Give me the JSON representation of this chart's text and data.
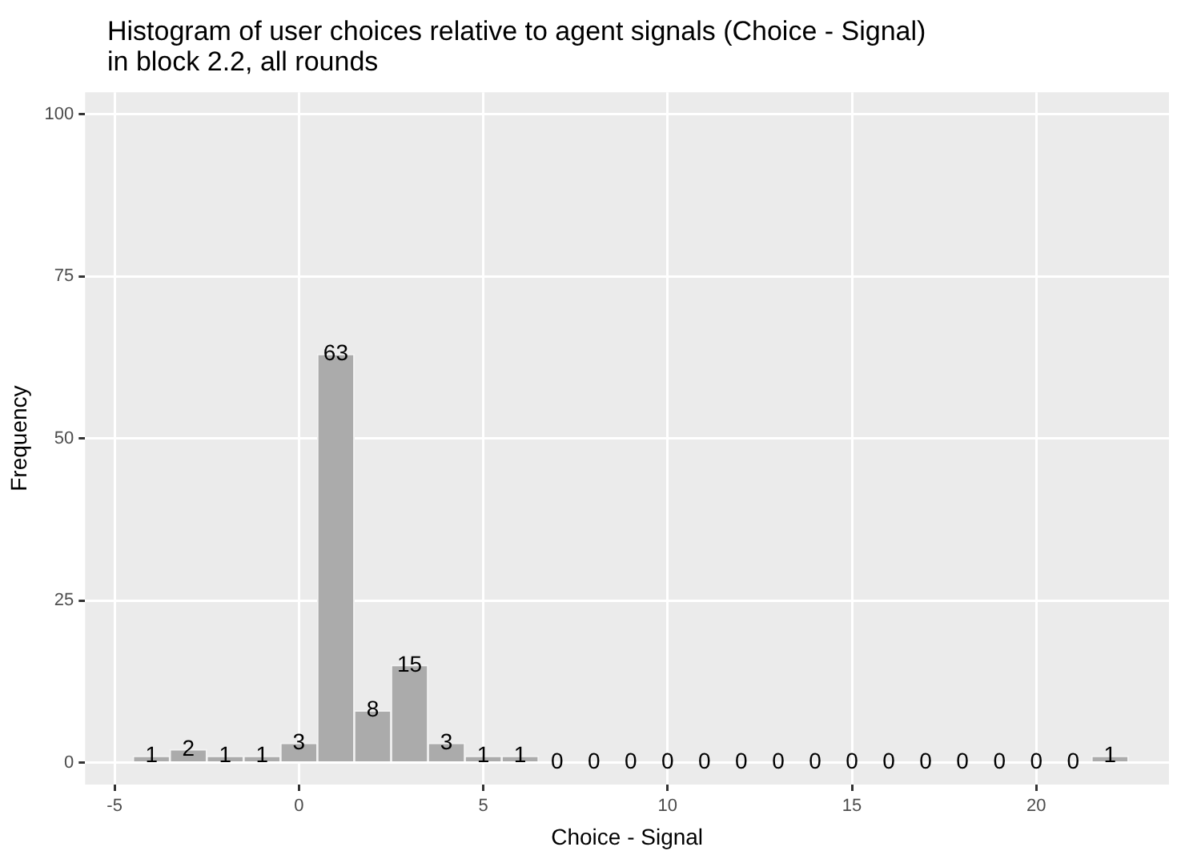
{
  "chart_data": {
    "type": "histogram",
    "title": "Histogram of user choices relative to agent signals (Choice - Signal)\nin block 2.2, all rounds",
    "xlabel": "Choice - Signal",
    "ylabel": "Frequency",
    "bins": [
      -4.5,
      -3.5,
      -2.5,
      -1.5,
      -0.5,
      0.5,
      1.5,
      2.5,
      3.5,
      4.5,
      5.5,
      6.5,
      7.5,
      8.5,
      9.5,
      10.5,
      11.5,
      12.5,
      13.5,
      14.5,
      15.5,
      16.5,
      17.5,
      18.5,
      19.5,
      20.5,
      21.5,
      22.5
    ],
    "values": [
      1,
      2,
      1,
      1,
      3,
      63,
      8,
      15,
      3,
      1,
      1,
      0,
      0,
      0,
      0,
      0,
      0,
      0,
      0,
      0,
      0,
      0,
      0,
      0,
      0,
      0,
      1
    ],
    "color": "#ababab",
    "xlim": [
      -5.8,
      23.6
    ],
    "xticks": [
      -5,
      0,
      5,
      10,
      15,
      20
    ],
    "ylim": [
      -3.4,
      103.4
    ],
    "yticks": [
      0,
      25,
      50,
      75,
      100
    ],
    "grid": true,
    "data_labels": true
  }
}
